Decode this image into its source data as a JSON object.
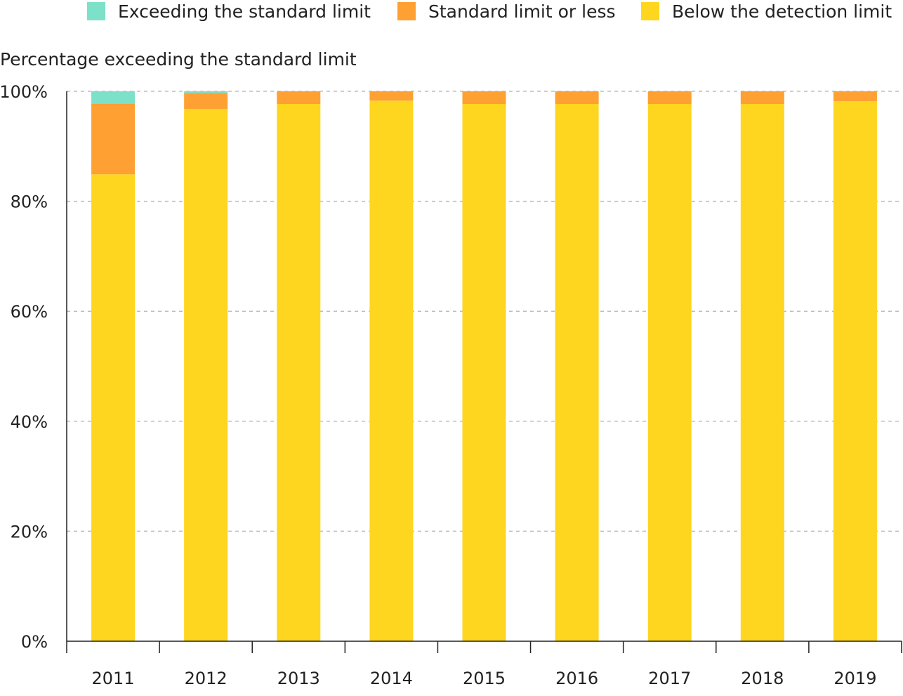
{
  "chart_data": {
    "type": "bar",
    "stacked": true,
    "title": "",
    "ylabel": "Percentage exceeding the standard limit",
    "xlabel": "",
    "ylim": [
      0,
      100
    ],
    "y_ticks": [
      "0%",
      "20%",
      "40%",
      "60%",
      "80%",
      "100%"
    ],
    "grid": "horizontal dashed",
    "legend_position": "top",
    "categories": [
      "2011",
      "2012",
      "2013",
      "2014",
      "2015",
      "2016",
      "2017",
      "2018",
      "2019"
    ],
    "series": [
      {
        "name": "Below the detection limit",
        "color": "#FFD61F",
        "values": [
          84.9,
          96.8,
          97.7,
          98.3,
          97.7,
          97.7,
          97.7,
          97.7,
          98.2
        ]
      },
      {
        "name": "Standard limit or less",
        "color": "#FFA033",
        "values": [
          12.8,
          2.9,
          2.3,
          1.7,
          2.3,
          2.3,
          2.3,
          2.3,
          1.8
        ]
      },
      {
        "name": "Exceeding the standard limit",
        "color": "#7DE0C8",
        "values": [
          2.3,
          0.3,
          0.0,
          0.0,
          0.0,
          0.0,
          0.0,
          0.0,
          0.0
        ]
      }
    ]
  }
}
